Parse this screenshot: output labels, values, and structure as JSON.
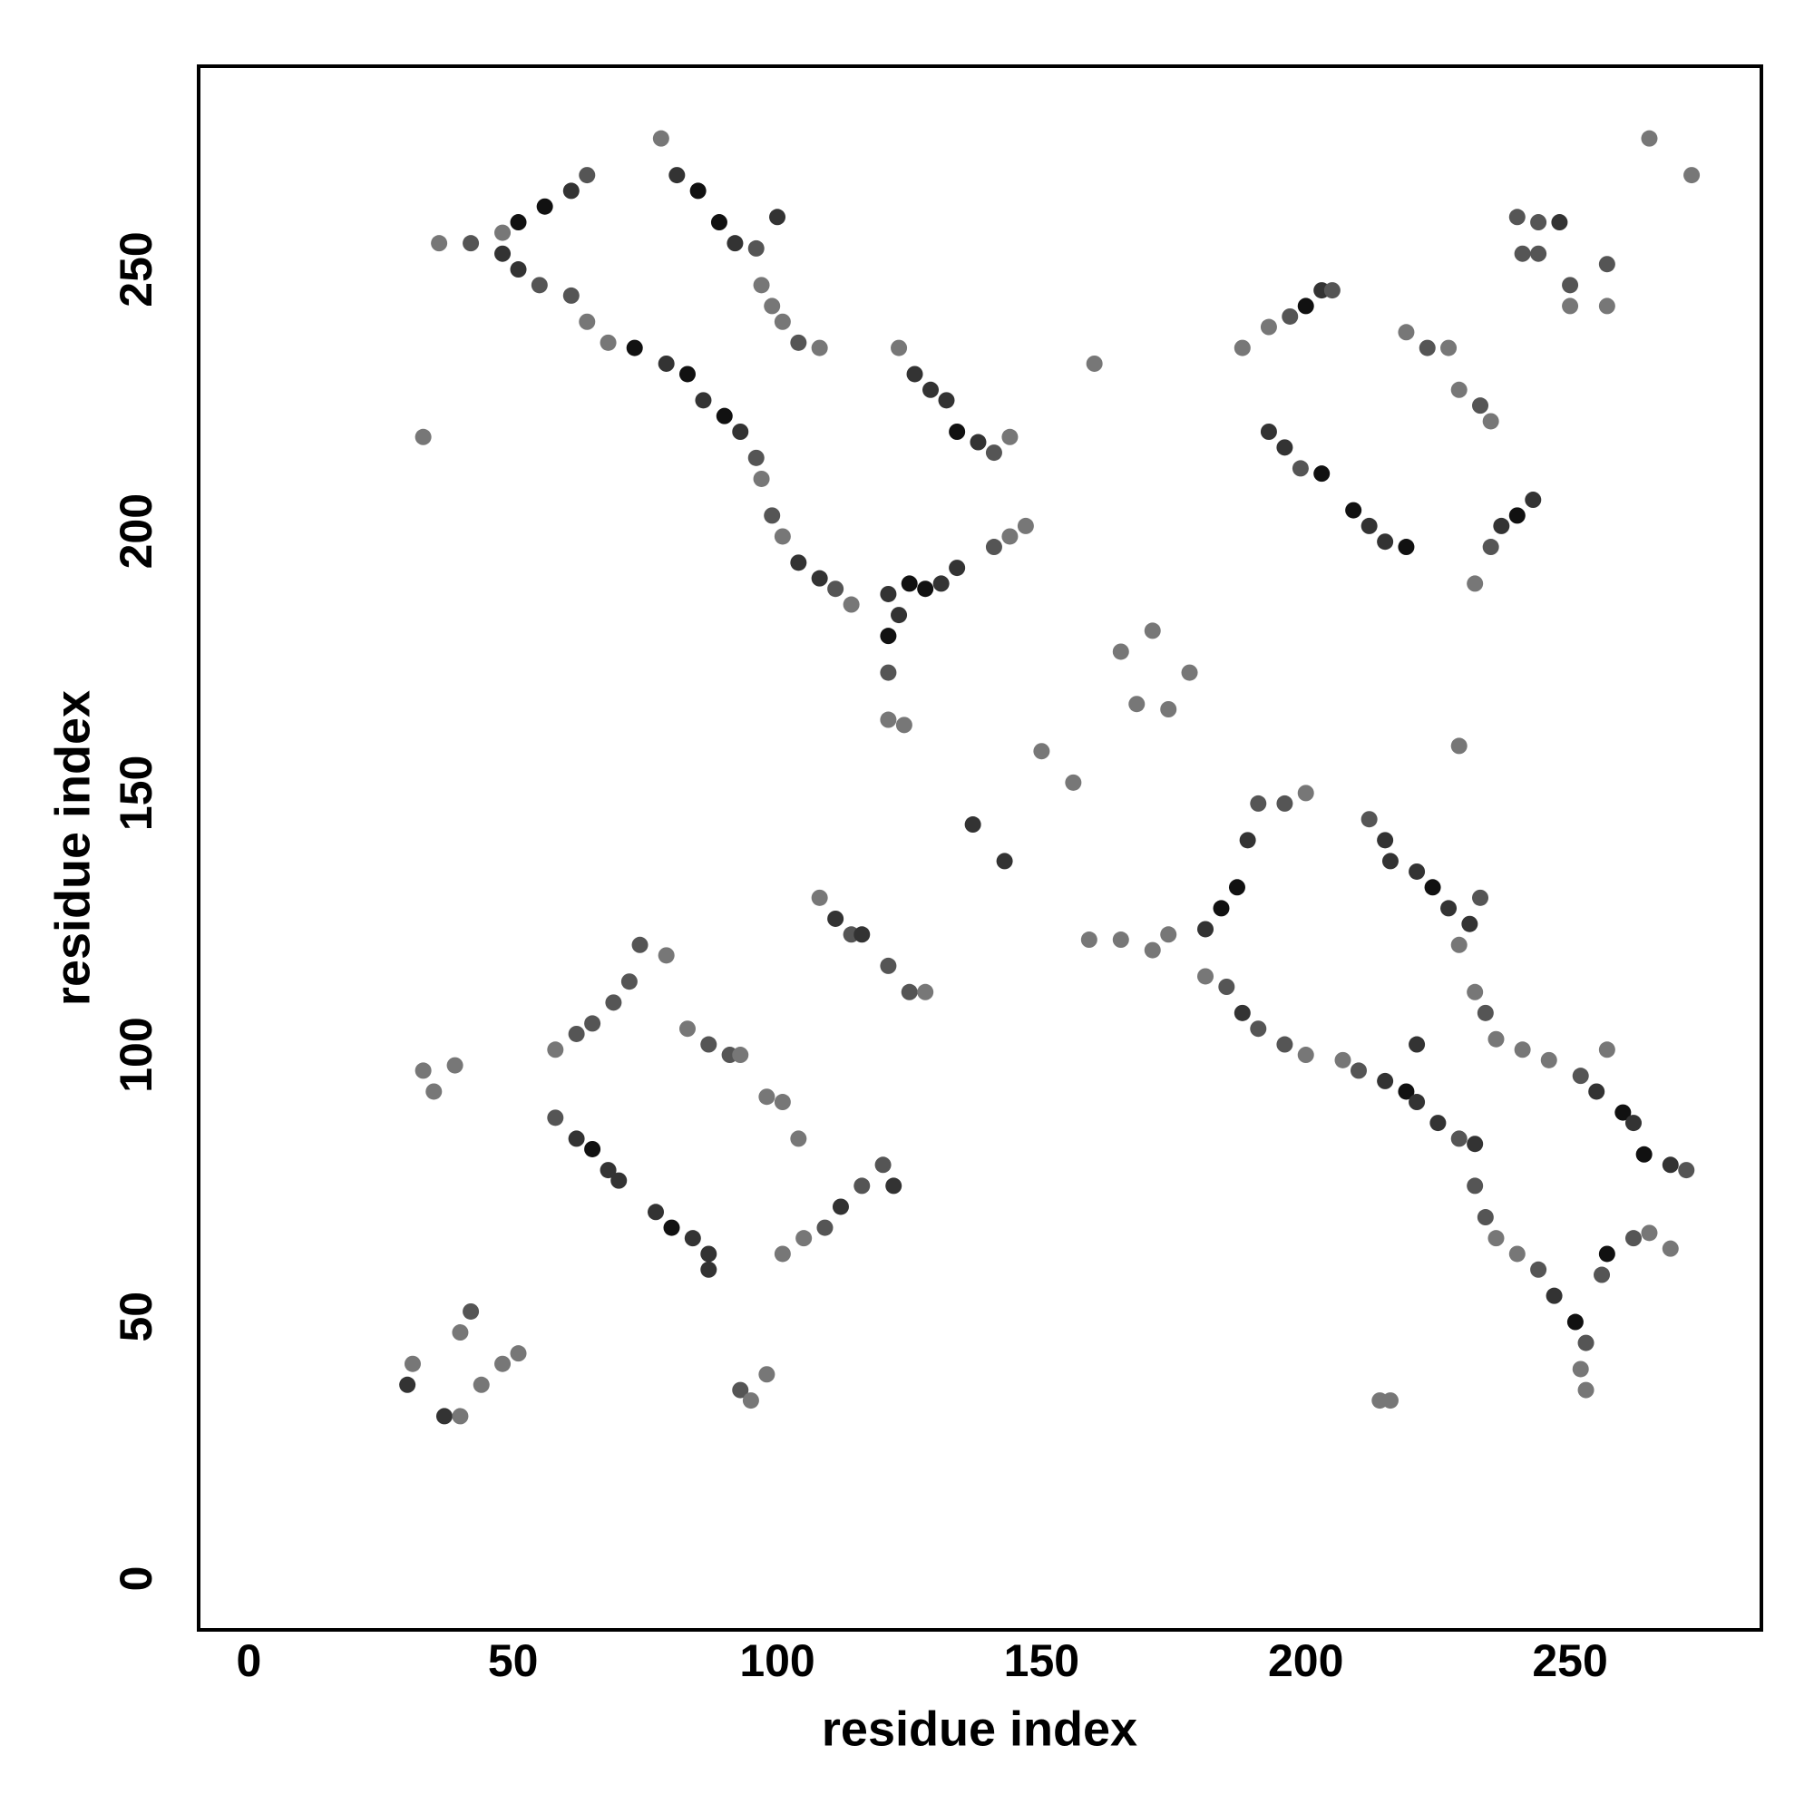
{
  "chart_data": {
    "type": "scatter",
    "x_label": "residue index",
    "y_label": "residue index",
    "xlim": [
      -9.5,
      286.2
    ],
    "ylim": [
      -9.8,
      288.8
    ],
    "xticks": [
      0,
      50,
      100,
      150,
      200,
      250
    ],
    "yticks": [
      0,
      50,
      100,
      150,
      200,
      250
    ],
    "x": [
      36,
      42,
      48,
      51,
      55,
      61,
      64,
      68,
      73,
      79,
      83,
      86,
      90,
      93,
      96,
      97,
      99,
      101,
      104,
      108,
      111,
      114,
      48,
      51,
      56,
      61,
      64,
      78,
      81,
      85,
      89,
      92,
      96,
      97,
      99,
      101,
      104,
      108,
      100,
      123,
      126,
      129,
      132,
      134,
      138,
      141,
      144,
      121,
      125,
      128,
      131,
      134,
      141,
      144,
      147,
      121,
      123,
      121,
      121,
      124,
      33,
      160,
      165,
      168,
      174,
      178,
      171,
      137,
      143,
      150,
      156,
      229,
      188,
      193,
      197,
      200,
      203,
      205,
      193,
      196,
      199,
      203,
      209,
      212,
      215,
      219,
      219,
      223,
      227,
      229,
      233,
      235,
      232,
      235,
      237,
      240,
      243,
      240,
      244,
      248,
      241,
      244,
      250,
      250,
      257,
      257,
      265,
      273,
      30,
      37,
      40,
      44,
      40,
      42,
      48,
      51,
      31,
      35,
      39,
      33,
      58,
      62,
      65,
      68,
      70,
      77,
      80,
      84,
      87,
      87,
      58,
      62,
      65,
      69,
      72,
      74,
      79,
      83,
      87,
      91,
      93,
      98,
      101,
      104,
      101,
      105,
      109,
      112,
      116,
      120,
      122,
      108,
      111,
      114,
      116,
      121,
      125,
      128,
      93,
      98,
      95,
      191,
      196,
      200,
      189,
      187,
      184,
      181,
      174,
      171,
      159,
      165,
      212,
      215,
      216,
      221,
      224,
      227,
      231,
      233,
      229,
      181,
      185,
      188,
      191,
      196,
      200,
      207,
      210,
      215,
      219,
      221,
      225,
      229,
      232,
      232,
      234,
      236,
      240,
      244,
      247,
      251,
      253,
      252,
      253,
      232,
      234,
      236,
      241,
      246,
      252,
      255,
      260,
      262,
      264,
      269,
      272,
      257,
      221,
      256,
      257,
      262,
      265,
      269,
      214,
      216
    ],
    "values": [
      255,
      255,
      253,
      250,
      247,
      245,
      240,
      236,
      235,
      232,
      230,
      225,
      222,
      219,
      214,
      210,
      203,
      199,
      194,
      191,
      189,
      186,
      257,
      259,
      262,
      265,
      268,
      275,
      268,
      265,
      259,
      255,
      254,
      247,
      243,
      240,
      236,
      235,
      260,
      235,
      230,
      227,
      225,
      219,
      217,
      215,
      218,
      188,
      190,
      189,
      190,
      193,
      197,
      199,
      201,
      180,
      184,
      173,
      164,
      163,
      218,
      232,
      177,
      167,
      166,
      173,
      181,
      144,
      137,
      158,
      152,
      159,
      235,
      239,
      241,
      243,
      246,
      246,
      219,
      216,
      212,
      211,
      204,
      201,
      198,
      197,
      238,
      235,
      235,
      227,
      224,
      221,
      190,
      197,
      201,
      203,
      206,
      260,
      259,
      259,
      253,
      253,
      247,
      243,
      251,
      243,
      275,
      268,
      37,
      31,
      31,
      37,
      47,
      51,
      41,
      43,
      41,
      93,
      98,
      97,
      88,
      84,
      82,
      78,
      76,
      70,
      67,
      65,
      62,
      59,
      101,
      104,
      106,
      110,
      114,
      121,
      119,
      105,
      102,
      100,
      100,
      92,
      91,
      84,
      62,
      65,
      67,
      71,
      75,
      79,
      75,
      130,
      126,
      123,
      123,
      117,
      112,
      112,
      36,
      39,
      34,
      148,
      148,
      150,
      141,
      132,
      128,
      124,
      123,
      120,
      122,
      122,
      145,
      141,
      137,
      135,
      132,
      128,
      125,
      130,
      121,
      115,
      113,
      108,
      105,
      102,
      100,
      99,
      97,
      95,
      93,
      91,
      87,
      84,
      83,
      75,
      69,
      65,
      62,
      59,
      54,
      49,
      45,
      40,
      36,
      112,
      108,
      103,
      101,
      99,
      96,
      93,
      89,
      87,
      81,
      79,
      78,
      101,
      102,
      58,
      62,
      65,
      66,
      63,
      34,
      34
    ],
    "colors": [
      "#777",
      "#555",
      "#333",
      "#333",
      "#555",
      "#555",
      "#777",
      "#777",
      "#111",
      "#333",
      "#111",
      "#333",
      "#111",
      "#333",
      "#555",
      "#777",
      "#555",
      "#777",
      "#333",
      "#333",
      "#555",
      "#777",
      "#777",
      "#111",
      "#111",
      "#333",
      "#555",
      "#777",
      "#333",
      "#111",
      "#111",
      "#333",
      "#555",
      "#777",
      "#777",
      "#777",
      "#555",
      "#777",
      "#333",
      "#777",
      "#333",
      "#333",
      "#333",
      "#111",
      "#333",
      "#555",
      "#777",
      "#333",
      "#111",
      "#111",
      "#333",
      "#333",
      "#555",
      "#777",
      "#777",
      "#111",
      "#333",
      "#555",
      "#777",
      "#777",
      "#777",
      "#777",
      "#777",
      "#777",
      "#777",
      "#777",
      "#777",
      "#333",
      "#333",
      "#777",
      "#777",
      "#777",
      "#777",
      "#777",
      "#555",
      "#111",
      "#333",
      "#555",
      "#333",
      "#333",
      "#555",
      "#111",
      "#111",
      "#333",
      "#333",
      "#111",
      "#777",
      "#555",
      "#777",
      "#777",
      "#555",
      "#777",
      "#777",
      "#555",
      "#333",
      "#111",
      "#333",
      "#555",
      "#555",
      "#333",
      "#555",
      "#555",
      "#555",
      "#777",
      "#555",
      "#777",
      "#777",
      "#777",
      "#333",
      "#333",
      "#777",
      "#777",
      "#777",
      "#555",
      "#777",
      "#777",
      "#777",
      "#777",
      "#777",
      "#777",
      "#555",
      "#333",
      "#111",
      "#333",
      "#333",
      "#333",
      "#111",
      "#333",
      "#333",
      "#333",
      "#777",
      "#555",
      "#555",
      "#555",
      "#555",
      "#555",
      "#777",
      "#777",
      "#555",
      "#555",
      "#777",
      "#777",
      "#777",
      "#777",
      "#777",
      "#777",
      "#555",
      "#333",
      "#555",
      "#555",
      "#333",
      "#777",
      "#333",
      "#555",
      "#333",
      "#555",
      "#555",
      "#777",
      "#555",
      "#777",
      "#777",
      "#555",
      "#555",
      "#777",
      "#333",
      "#111",
      "#111",
      "#333",
      "#777",
      "#777",
      "#777",
      "#777",
      "#555",
      "#333",
      "#333",
      "#333",
      "#111",
      "#333",
      "#333",
      "#555",
      "#777",
      "#777",
      "#555",
      "#333",
      "#555",
      "#555",
      "#777",
      "#777",
      "#555",
      "#333",
      "#111",
      "#333",
      "#333",
      "#555",
      "#333",
      "#555",
      "#555",
      "#777",
      "#777",
      "#555",
      "#333",
      "#111",
      "#555",
      "#777",
      "#777",
      "#777",
      "#555",
      "#777",
      "#777",
      "#777",
      "#555",
      "#333",
      "#111",
      "#333",
      "#111",
      "#333",
      "#555",
      "#777",
      "#333",
      "#555",
      "#111",
      "#555",
      "#777",
      "#777",
      "#777",
      "#777"
    ]
  }
}
